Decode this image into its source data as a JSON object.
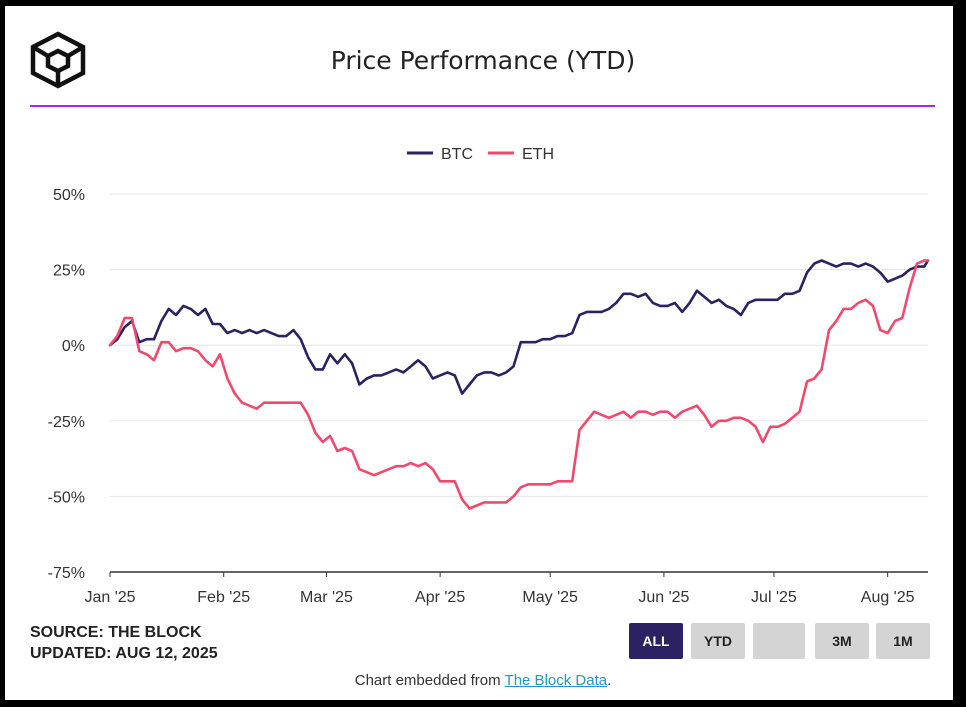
{
  "header": {
    "title": "Price Performance (YTD)",
    "logo_icon": "the-block-cube-logo"
  },
  "colors": {
    "btc": "#2b2163",
    "eth": "#ef4a6e",
    "accent_rule": "#a22ae0",
    "active_button": "#2b2163"
  },
  "footer": {
    "source": "SOURCE: THE BLOCK",
    "updated": "UPDATED: AUG 12, 2025",
    "embed_prefix": "Chart embedded from ",
    "embed_link": "The Block Data",
    "embed_suffix": "."
  },
  "range_buttons": [
    {
      "label": "ALL",
      "active": true
    },
    {
      "label": "YTD",
      "active": false
    },
    {
      "label": "",
      "active": false
    },
    {
      "label": "3M",
      "active": false
    },
    {
      "label": "1M",
      "active": false
    }
  ],
  "chart_data": {
    "type": "line",
    "title": "Price Performance (YTD)",
    "ylim": [
      -75,
      50
    ],
    "y_ticks": [
      {
        "value": 50,
        "label": "50%"
      },
      {
        "value": 25,
        "label": "25%"
      },
      {
        "value": 0,
        "label": "0%"
      },
      {
        "value": -25,
        "label": "-25%"
      },
      {
        "value": -50,
        "label": "-50%"
      },
      {
        "value": -75,
        "label": "-75%"
      }
    ],
    "x_domain": [
      "2025-01-01",
      "2025-08-12"
    ],
    "x_ticks": [
      {
        "date": "2025-01-01",
        "label": "Jan '25"
      },
      {
        "date": "2025-02-01",
        "label": "Feb '25"
      },
      {
        "date": "2025-03-01",
        "label": "Mar '25"
      },
      {
        "date": "2025-04-01",
        "label": "Apr '25"
      },
      {
        "date": "2025-05-01",
        "label": "May '25"
      },
      {
        "date": "2025-06-01",
        "label": "Jun '25"
      },
      {
        "date": "2025-07-01",
        "label": "Jul '25"
      },
      {
        "date": "2025-08-01",
        "label": "Aug '25"
      }
    ],
    "grid": "horizontal",
    "legend": "top-center",
    "series": [
      {
        "name": "BTC",
        "color": "#2b2163",
        "points": [
          [
            "2025-01-01",
            0
          ],
          [
            "2025-01-03",
            2
          ],
          [
            "2025-01-05",
            6
          ],
          [
            "2025-01-07",
            8
          ],
          [
            "2025-01-09",
            1
          ],
          [
            "2025-01-11",
            2
          ],
          [
            "2025-01-13",
            2
          ],
          [
            "2025-01-15",
            8
          ],
          [
            "2025-01-17",
            12
          ],
          [
            "2025-01-19",
            10
          ],
          [
            "2025-01-21",
            13
          ],
          [
            "2025-01-23",
            12
          ],
          [
            "2025-01-25",
            10
          ],
          [
            "2025-01-27",
            12
          ],
          [
            "2025-01-29",
            7
          ],
          [
            "2025-01-31",
            7
          ],
          [
            "2025-02-02",
            4
          ],
          [
            "2025-02-04",
            5
          ],
          [
            "2025-02-06",
            4
          ],
          [
            "2025-02-08",
            5
          ],
          [
            "2025-02-10",
            4
          ],
          [
            "2025-02-12",
            5
          ],
          [
            "2025-02-14",
            4
          ],
          [
            "2025-02-16",
            3
          ],
          [
            "2025-02-18",
            3
          ],
          [
            "2025-02-20",
            5
          ],
          [
            "2025-02-22",
            2
          ],
          [
            "2025-02-24",
            -4
          ],
          [
            "2025-02-26",
            -8
          ],
          [
            "2025-02-28",
            -8
          ],
          [
            "2025-03-02",
            -3
          ],
          [
            "2025-03-04",
            -6
          ],
          [
            "2025-03-06",
            -3
          ],
          [
            "2025-03-08",
            -6
          ],
          [
            "2025-03-10",
            -13
          ],
          [
            "2025-03-12",
            -11
          ],
          [
            "2025-03-14",
            -10
          ],
          [
            "2025-03-16",
            -10
          ],
          [
            "2025-03-18",
            -9
          ],
          [
            "2025-03-20",
            -8
          ],
          [
            "2025-03-22",
            -9
          ],
          [
            "2025-03-24",
            -7
          ],
          [
            "2025-03-26",
            -5
          ],
          [
            "2025-03-28",
            -7
          ],
          [
            "2025-03-30",
            -11
          ],
          [
            "2025-04-01",
            -10
          ],
          [
            "2025-04-03",
            -9
          ],
          [
            "2025-04-05",
            -10
          ],
          [
            "2025-04-07",
            -16
          ],
          [
            "2025-04-09",
            -13
          ],
          [
            "2025-04-11",
            -10
          ],
          [
            "2025-04-13",
            -9
          ],
          [
            "2025-04-15",
            -9
          ],
          [
            "2025-04-17",
            -10
          ],
          [
            "2025-04-19",
            -9
          ],
          [
            "2025-04-21",
            -7
          ],
          [
            "2025-04-23",
            1
          ],
          [
            "2025-04-25",
            1
          ],
          [
            "2025-04-27",
            1
          ],
          [
            "2025-04-29",
            2
          ],
          [
            "2025-05-01",
            2
          ],
          [
            "2025-05-03",
            3
          ],
          [
            "2025-05-05",
            3
          ],
          [
            "2025-05-07",
            4
          ],
          [
            "2025-05-09",
            10
          ],
          [
            "2025-05-11",
            11
          ],
          [
            "2025-05-13",
            11
          ],
          [
            "2025-05-15",
            11
          ],
          [
            "2025-05-17",
            12
          ],
          [
            "2025-05-19",
            14
          ],
          [
            "2025-05-21",
            17
          ],
          [
            "2025-05-23",
            17
          ],
          [
            "2025-05-25",
            16
          ],
          [
            "2025-05-27",
            17
          ],
          [
            "2025-05-29",
            14
          ],
          [
            "2025-05-31",
            13
          ],
          [
            "2025-06-02",
            13
          ],
          [
            "2025-06-04",
            14
          ],
          [
            "2025-06-06",
            11
          ],
          [
            "2025-06-08",
            14
          ],
          [
            "2025-06-10",
            18
          ],
          [
            "2025-06-12",
            16
          ],
          [
            "2025-06-14",
            14
          ],
          [
            "2025-06-16",
            15
          ],
          [
            "2025-06-18",
            13
          ],
          [
            "2025-06-20",
            12
          ],
          [
            "2025-06-22",
            10
          ],
          [
            "2025-06-24",
            14
          ],
          [
            "2025-06-26",
            15
          ],
          [
            "2025-06-28",
            15
          ],
          [
            "2025-06-30",
            15
          ],
          [
            "2025-07-02",
            15
          ],
          [
            "2025-07-04",
            17
          ],
          [
            "2025-07-06",
            17
          ],
          [
            "2025-07-08",
            18
          ],
          [
            "2025-07-10",
            24
          ],
          [
            "2025-07-12",
            27
          ],
          [
            "2025-07-14",
            28
          ],
          [
            "2025-07-16",
            27
          ],
          [
            "2025-07-18",
            26
          ],
          [
            "2025-07-20",
            27
          ],
          [
            "2025-07-22",
            27
          ],
          [
            "2025-07-24",
            26
          ],
          [
            "2025-07-26",
            27
          ],
          [
            "2025-07-28",
            26
          ],
          [
            "2025-07-30",
            24
          ],
          [
            "2025-08-01",
            21
          ],
          [
            "2025-08-03",
            22
          ],
          [
            "2025-08-05",
            23
          ],
          [
            "2025-08-07",
            25
          ],
          [
            "2025-08-09",
            26
          ],
          [
            "2025-08-11",
            26
          ],
          [
            "2025-08-12",
            28
          ]
        ]
      },
      {
        "name": "ETH",
        "color": "#ef4a6e",
        "points": [
          [
            "2025-01-01",
            0
          ],
          [
            "2025-01-03",
            3
          ],
          [
            "2025-01-05",
            9
          ],
          [
            "2025-01-07",
            9
          ],
          [
            "2025-01-09",
            -2
          ],
          [
            "2025-01-11",
            -3
          ],
          [
            "2025-01-13",
            -5
          ],
          [
            "2025-01-15",
            1
          ],
          [
            "2025-01-17",
            1
          ],
          [
            "2025-01-19",
            -2
          ],
          [
            "2025-01-21",
            -1
          ],
          [
            "2025-01-23",
            -1
          ],
          [
            "2025-01-25",
            -2
          ],
          [
            "2025-01-27",
            -5
          ],
          [
            "2025-01-29",
            -7
          ],
          [
            "2025-01-31",
            -3
          ],
          [
            "2025-02-02",
            -11
          ],
          [
            "2025-02-04",
            -16
          ],
          [
            "2025-02-06",
            -19
          ],
          [
            "2025-02-08",
            -20
          ],
          [
            "2025-02-10",
            -21
          ],
          [
            "2025-02-12",
            -19
          ],
          [
            "2025-02-14",
            -19
          ],
          [
            "2025-02-16",
            -19
          ],
          [
            "2025-02-18",
            -19
          ],
          [
            "2025-02-20",
            -19
          ],
          [
            "2025-02-22",
            -19
          ],
          [
            "2025-02-24",
            -23
          ],
          [
            "2025-02-26",
            -29
          ],
          [
            "2025-02-28",
            -32
          ],
          [
            "2025-03-02",
            -30
          ],
          [
            "2025-03-04",
            -35
          ],
          [
            "2025-03-06",
            -34
          ],
          [
            "2025-03-08",
            -35
          ],
          [
            "2025-03-10",
            -41
          ],
          [
            "2025-03-12",
            -42
          ],
          [
            "2025-03-14",
            -43
          ],
          [
            "2025-03-16",
            -42
          ],
          [
            "2025-03-18",
            -41
          ],
          [
            "2025-03-20",
            -40
          ],
          [
            "2025-03-22",
            -40
          ],
          [
            "2025-03-24",
            -39
          ],
          [
            "2025-03-26",
            -40
          ],
          [
            "2025-03-28",
            -39
          ],
          [
            "2025-03-30",
            -41
          ],
          [
            "2025-04-01",
            -45
          ],
          [
            "2025-04-03",
            -45
          ],
          [
            "2025-04-05",
            -45
          ],
          [
            "2025-04-07",
            -51
          ],
          [
            "2025-04-09",
            -54
          ],
          [
            "2025-04-11",
            -53
          ],
          [
            "2025-04-13",
            -52
          ],
          [
            "2025-04-15",
            -52
          ],
          [
            "2025-04-17",
            -52
          ],
          [
            "2025-04-19",
            -52
          ],
          [
            "2025-04-21",
            -50
          ],
          [
            "2025-04-23",
            -47
          ],
          [
            "2025-04-25",
            -46
          ],
          [
            "2025-04-27",
            -46
          ],
          [
            "2025-04-29",
            -46
          ],
          [
            "2025-05-01",
            -46
          ],
          [
            "2025-05-03",
            -45
          ],
          [
            "2025-05-05",
            -45
          ],
          [
            "2025-05-07",
            -45
          ],
          [
            "2025-05-09",
            -28
          ],
          [
            "2025-05-11",
            -25
          ],
          [
            "2025-05-13",
            -22
          ],
          [
            "2025-05-15",
            -23
          ],
          [
            "2025-05-17",
            -24
          ],
          [
            "2025-05-19",
            -23
          ],
          [
            "2025-05-21",
            -22
          ],
          [
            "2025-05-23",
            -24
          ],
          [
            "2025-05-25",
            -22
          ],
          [
            "2025-05-27",
            -22
          ],
          [
            "2025-05-29",
            -23
          ],
          [
            "2025-05-31",
            -22
          ],
          [
            "2025-06-02",
            -22
          ],
          [
            "2025-06-04",
            -24
          ],
          [
            "2025-06-06",
            -22
          ],
          [
            "2025-06-08",
            -21
          ],
          [
            "2025-06-10",
            -20
          ],
          [
            "2025-06-12",
            -23
          ],
          [
            "2025-06-14",
            -27
          ],
          [
            "2025-06-16",
            -25
          ],
          [
            "2025-06-18",
            -25
          ],
          [
            "2025-06-20",
            -24
          ],
          [
            "2025-06-22",
            -24
          ],
          [
            "2025-06-24",
            -25
          ],
          [
            "2025-06-26",
            -27
          ],
          [
            "2025-06-28",
            -32
          ],
          [
            "2025-06-30",
            -27
          ],
          [
            "2025-07-02",
            -27
          ],
          [
            "2025-07-04",
            -26
          ],
          [
            "2025-07-06",
            -24
          ],
          [
            "2025-07-08",
            -22
          ],
          [
            "2025-07-10",
            -12
          ],
          [
            "2025-07-12",
            -11
          ],
          [
            "2025-07-14",
            -8
          ],
          [
            "2025-07-16",
            5
          ],
          [
            "2025-07-18",
            8
          ],
          [
            "2025-07-20",
            12
          ],
          [
            "2025-07-22",
            12
          ],
          [
            "2025-07-24",
            14
          ],
          [
            "2025-07-26",
            15
          ],
          [
            "2025-07-28",
            13
          ],
          [
            "2025-07-30",
            5
          ],
          [
            "2025-08-01",
            4
          ],
          [
            "2025-08-03",
            8
          ],
          [
            "2025-08-05",
            9
          ],
          [
            "2025-08-07",
            19
          ],
          [
            "2025-08-09",
            27
          ],
          [
            "2025-08-11",
            28
          ],
          [
            "2025-08-12",
            28
          ]
        ]
      }
    ]
  }
}
